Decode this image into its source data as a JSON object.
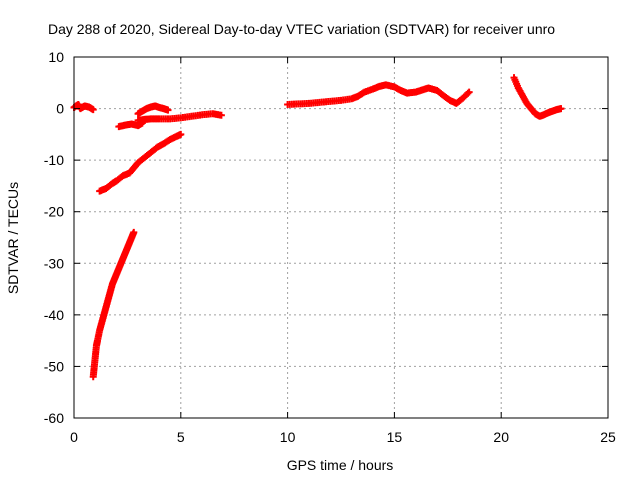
{
  "chart_data": {
    "type": "scatter",
    "title": "Day 288 of 2020, Sidereal Day-to-day VTEC variation (SDTVAR) for receiver unro",
    "xlabel": "GPS time / hours",
    "ylabel": "SDTVAR / TECUs",
    "xlim": [
      0,
      25
    ],
    "ylim": [
      -60,
      10
    ],
    "xticks": [
      0,
      5,
      10,
      15,
      20,
      25
    ],
    "yticks": [
      10,
      0,
      -10,
      -20,
      -30,
      -40,
      -50,
      -60
    ],
    "xtick_labels": [
      "0",
      "5",
      "10",
      "15",
      "20",
      "25"
    ],
    "ytick_labels": [
      "10",
      "0",
      "-10",
      "-20",
      "-30",
      "-40",
      "-50",
      "-60"
    ],
    "grid": true,
    "marker": "plus",
    "color": "#ff0000",
    "series": [
      {
        "x": [
          0.0,
          0.2,
          0.3,
          0.5,
          0.7,
          0.9
        ],
        "y": [
          0.2,
          0.8,
          0.0,
          0.5,
          0.3,
          -0.2
        ]
      },
      {
        "x": [
          0.9,
          0.95,
          1.0,
          1.05,
          1.1,
          1.2,
          1.3,
          1.4,
          1.5,
          1.6,
          1.7,
          1.8,
          1.9,
          2.0,
          2.1,
          2.2,
          2.3,
          2.4,
          2.5,
          2.6,
          2.7,
          2.8
        ],
        "y": [
          -52,
          -50,
          -48,
          -46,
          -45,
          -43,
          -41.5,
          -40,
          -38.5,
          -37,
          -35.5,
          -34,
          -33,
          -32,
          -31,
          -30,
          -29,
          -28,
          -27,
          -26,
          -25,
          -24
        ]
      },
      {
        "x": [
          1.2,
          1.5,
          1.8,
          2.0,
          2.3,
          2.6,
          2.8,
          3.0,
          3.3,
          3.6,
          3.9,
          4.2,
          4.5,
          4.8,
          5.0
        ],
        "y": [
          -16,
          -15.5,
          -14.5,
          -14,
          -13,
          -12.5,
          -11.5,
          -10.5,
          -9.5,
          -8.5,
          -7.5,
          -6.8,
          -6,
          -5.4,
          -5
        ]
      },
      {
        "x": [
          2.1,
          2.4,
          2.7,
          3.0,
          3.2
        ],
        "y": [
          -3.5,
          -3.2,
          -3.0,
          -3.3,
          -2.8
        ]
      },
      {
        "x": [
          3.0,
          3.2,
          3.4,
          3.6,
          3.8,
          4.0,
          4.2,
          4.4
        ],
        "y": [
          -1.0,
          -0.5,
          0.0,
          0.3,
          0.5,
          0.2,
          0.0,
          -0.3
        ]
      },
      {
        "x": [
          3.0,
          3.3,
          3.6,
          4.0,
          4.5,
          5.0,
          5.5,
          6.0,
          6.5,
          6.9
        ],
        "y": [
          -2.3,
          -2.1,
          -2.0,
          -2.0,
          -2.0,
          -1.8,
          -1.5,
          -1.2,
          -1.0,
          -1.3
        ]
      },
      {
        "x": [
          10.0,
          10.5,
          11.0,
          11.5,
          12.0,
          12.5,
          13.0,
          13.3,
          13.6,
          14.0,
          14.3,
          14.6,
          15.0,
          15.3,
          15.6,
          16.0,
          16.3,
          16.6,
          17.0,
          17.3,
          17.6,
          17.9,
          18.2,
          18.5
        ],
        "y": [
          0.8,
          0.9,
          1.0,
          1.2,
          1.4,
          1.6,
          1.9,
          2.4,
          3.2,
          3.8,
          4.3,
          4.6,
          4.2,
          3.5,
          3.0,
          3.2,
          3.6,
          4.0,
          3.5,
          2.5,
          1.6,
          1.0,
          2.0,
          3.2
        ]
      },
      {
        "x": [
          20.6,
          20.8,
          21.0,
          21.2,
          21.4,
          21.6,
          21.8,
          22.0,
          22.2,
          22.4,
          22.6,
          22.8
        ],
        "y": [
          6.0,
          4.0,
          2.5,
          1.0,
          0.0,
          -1.0,
          -1.5,
          -1.2,
          -0.8,
          -0.5,
          -0.2,
          0.0
        ]
      }
    ]
  }
}
